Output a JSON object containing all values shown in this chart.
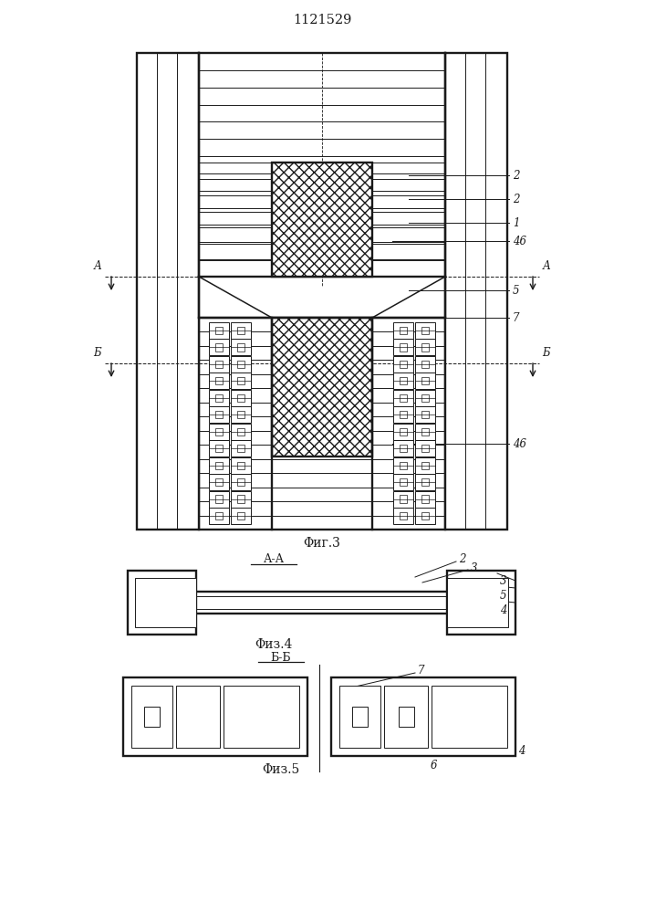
{
  "title": "1121529",
  "bg": "#ffffff",
  "lc": "#1a1a1a",
  "fig3_caption": "Φиг.3",
  "fig4_caption": "Φиз.4",
  "fig5_caption": "Φиз.5",
  "aa_caption": "А-А",
  "bb_caption": "Б-Б"
}
